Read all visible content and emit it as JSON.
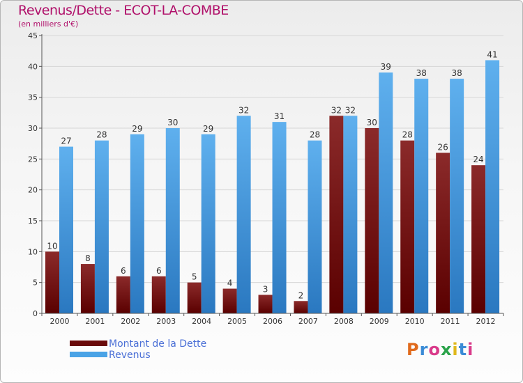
{
  "chart_data": {
    "type": "bar",
    "title": "Revenus/Dette - ECOT-LA-COMBE",
    "subtitle": "(en milliers d'€)",
    "categories": [
      "2000",
      "2001",
      "2002",
      "2003",
      "2004",
      "2005",
      "2006",
      "2007",
      "2008",
      "2009",
      "2010",
      "2011",
      "2012"
    ],
    "series": [
      {
        "name": "Montant de la Dette",
        "color": "#7a1414",
        "values": [
          10,
          8,
          6,
          6,
          5,
          4,
          3,
          2,
          32,
          30,
          28,
          26,
          24
        ]
      },
      {
        "name": "Revenus",
        "color": "#4aa3e6",
        "values": [
          27,
          28,
          29,
          30,
          29,
          32,
          31,
          28,
          32,
          39,
          38,
          38,
          41
        ]
      }
    ],
    "ylim": [
      0,
      45
    ],
    "yticks": [
      0,
      5,
      10,
      15,
      20,
      25,
      30,
      35,
      40,
      45
    ],
    "grid": true,
    "legend": "bottom-left",
    "logo": "Proxiti"
  }
}
